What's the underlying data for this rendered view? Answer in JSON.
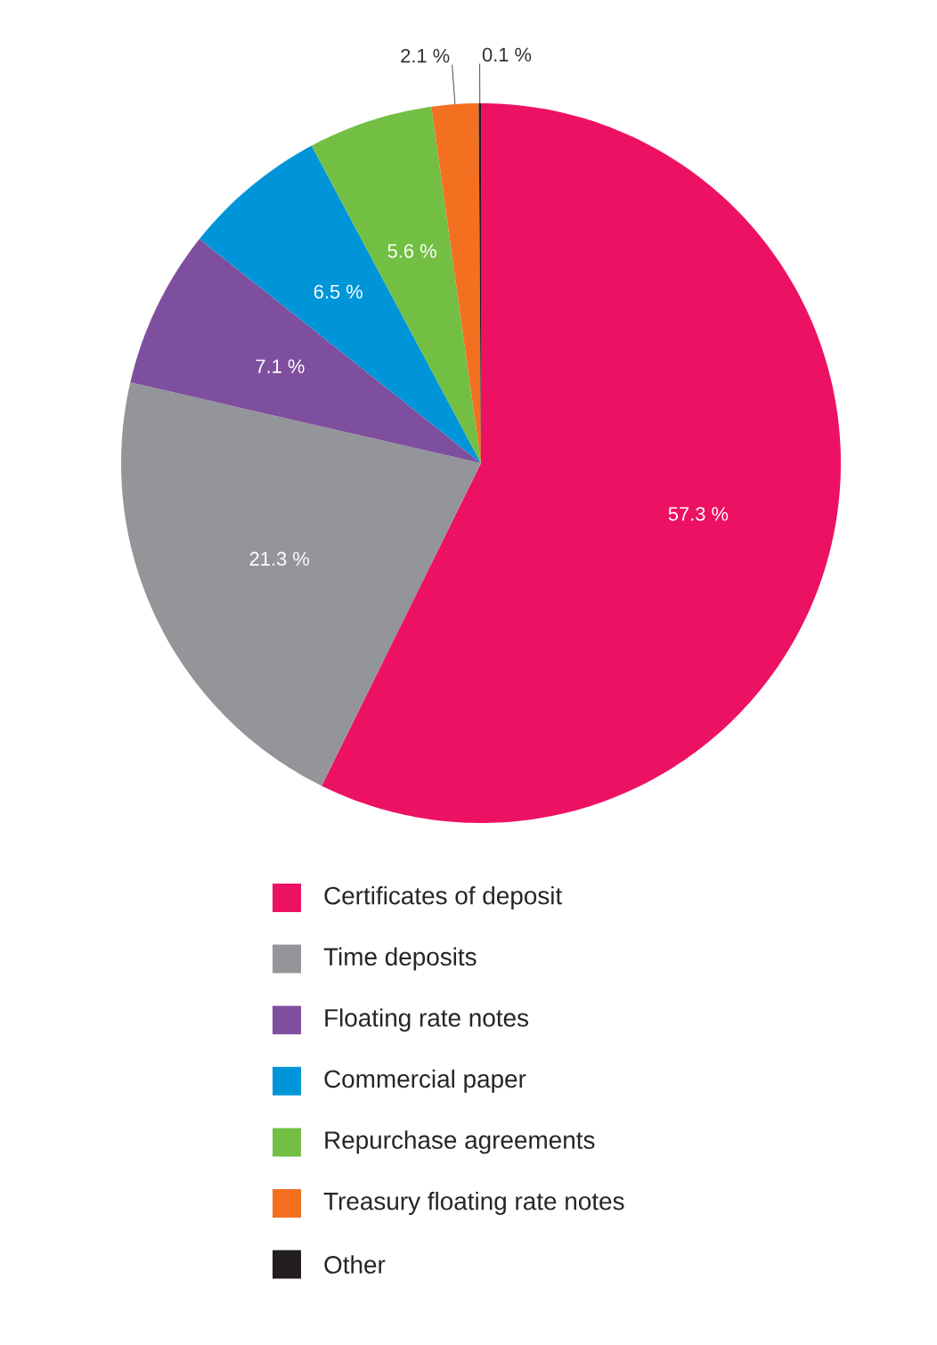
{
  "chart_data": {
    "type": "pie",
    "categories": [
      "Certificates of deposit",
      "Time deposits",
      "Floating rate notes",
      "Commercial paper",
      "Repurchase agreements",
      "Treasury floating rate notes",
      "Other"
    ],
    "values": [
      57.3,
      21.3,
      7.1,
      6.5,
      5.6,
      2.1,
      0.1
    ],
    "value_labels": [
      "57.3 %",
      "21.3 %",
      "7.1 %",
      "6.5 %",
      "5.6 %",
      "2.1 %",
      "0.1 %"
    ],
    "colors": [
      "#ed1164",
      "#939598",
      "#7f4f9f",
      "#0095d9",
      "#72bf44",
      "#f37021",
      "#231f20"
    ],
    "legend": "bottom"
  }
}
